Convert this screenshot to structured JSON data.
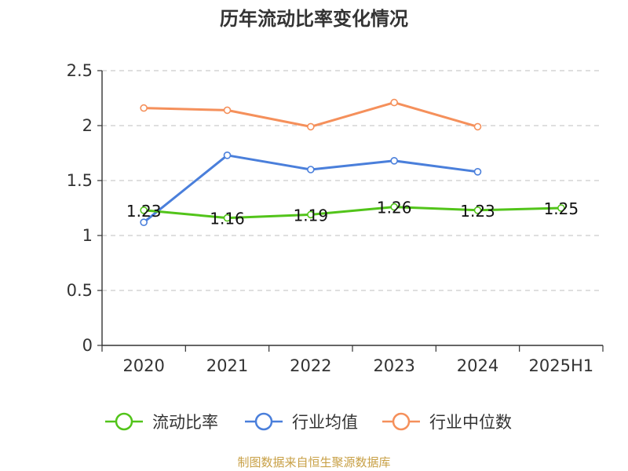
{
  "chart_data": {
    "type": "line",
    "title": "历年流动比率变化情况",
    "categories": [
      "2020",
      "2021",
      "2022",
      "2023",
      "2024",
      "2025H1"
    ],
    "y_ticks": [
      "0",
      "0.5",
      "1",
      "1.5",
      "2",
      "2.5"
    ],
    "ylim": [
      0,
      2.5
    ],
    "grid": true,
    "legend_position": "bottom",
    "series": [
      {
        "name": "流动比率",
        "color": "#52c41a",
        "values": [
          1.23,
          1.16,
          1.19,
          1.26,
          1.23,
          1.25
        ],
        "labels": [
          "1.23",
          "1.16",
          "1.19",
          "1.26",
          "1.23",
          "1.25"
        ]
      },
      {
        "name": "行业均值",
        "color": "#4a7fdb",
        "values": [
          1.12,
          1.73,
          1.6,
          1.68,
          1.58,
          null
        ]
      },
      {
        "name": "行业中位数",
        "color": "#f5905b",
        "values": [
          2.16,
          2.14,
          1.99,
          2.21,
          1.99,
          null
        ]
      }
    ]
  },
  "source_text": "制图数据来自恒生聚源数据库"
}
